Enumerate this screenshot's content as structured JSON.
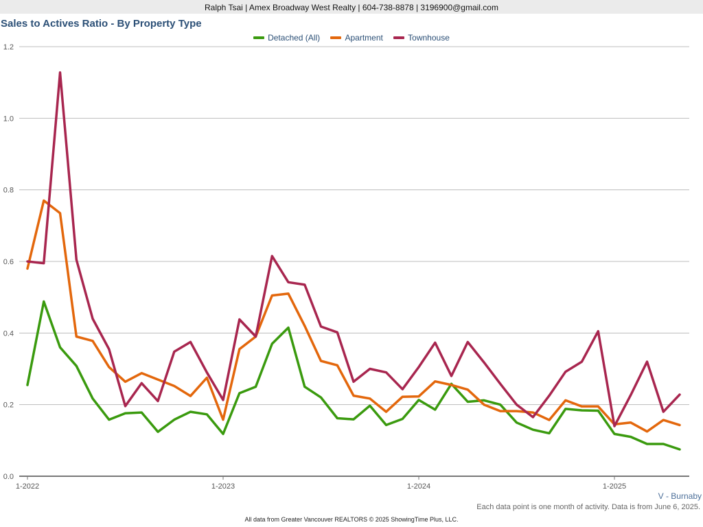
{
  "header": {
    "contact": "Ralph Tsai | Amex Broadway West Realty | 604-738-8878 | 3196900@gmail.com"
  },
  "region_label": "V - Burnaby",
  "note": "Each data point is one month of activity. Data is from June 6, 2025.",
  "footer": "All data from Greater Vancouver REALTORS © 2025 ShowingTime Plus, LLC.",
  "chart_data": {
    "type": "line",
    "title": "Sales to Actives Ratio - By Property Type",
    "xlabel": "",
    "ylabel": "",
    "ylim": [
      0,
      1.2
    ],
    "yticks": [
      "0.0",
      "0.2",
      "0.4",
      "0.6",
      "0.8",
      "1.0",
      "1.2"
    ],
    "xticks": [
      {
        "label": "1-2022",
        "index": 0
      },
      {
        "label": "1-2023",
        "index": 12
      },
      {
        "label": "1-2024",
        "index": 24
      },
      {
        "label": "1-2025",
        "index": 36
      }
    ],
    "grid": true,
    "legend": "top-center",
    "x": [
      "1-2022",
      "2-2022",
      "3-2022",
      "4-2022",
      "5-2022",
      "6-2022",
      "7-2022",
      "8-2022",
      "9-2022",
      "10-2022",
      "11-2022",
      "12-2022",
      "1-2023",
      "2-2023",
      "3-2023",
      "4-2023",
      "5-2023",
      "6-2023",
      "7-2023",
      "8-2023",
      "9-2023",
      "10-2023",
      "11-2023",
      "12-2023",
      "1-2024",
      "2-2024",
      "3-2024",
      "4-2024",
      "5-2024",
      "6-2024",
      "7-2024",
      "8-2024",
      "9-2024",
      "10-2024",
      "11-2024",
      "12-2024",
      "1-2025",
      "2-2025",
      "3-2025",
      "4-2025",
      "5-2025"
    ],
    "series": [
      {
        "name": "Detached (All)",
        "color": "#3a9a0e",
        "values": [
          0.255,
          0.488,
          0.36,
          0.308,
          0.217,
          0.158,
          0.176,
          0.178,
          0.124,
          0.158,
          0.18,
          0.173,
          0.118,
          0.232,
          0.25,
          0.37,
          0.415,
          0.25,
          0.22,
          0.162,
          0.159,
          0.197,
          0.143,
          0.16,
          0.213,
          0.186,
          0.258,
          0.208,
          0.212,
          0.2,
          0.15,
          0.13,
          0.12,
          0.188,
          0.184,
          0.183,
          0.118,
          0.11,
          0.09,
          0.09,
          0.075
        ]
      },
      {
        "name": "Apartment",
        "color": "#e3670c",
        "values": [
          0.58,
          0.77,
          0.735,
          0.39,
          0.378,
          0.305,
          0.264,
          0.288,
          0.27,
          0.252,
          0.224,
          0.275,
          0.158,
          0.355,
          0.39,
          0.505,
          0.51,
          0.42,
          0.322,
          0.31,
          0.225,
          0.217,
          0.18,
          0.222,
          0.223,
          0.265,
          0.255,
          0.242,
          0.2,
          0.182,
          0.182,
          0.178,
          0.157,
          0.212,
          0.195,
          0.195,
          0.145,
          0.15,
          0.125,
          0.157,
          0.143
        ]
      },
      {
        "name": "Townhouse",
        "color": "#a8264f",
        "values": [
          0.6,
          0.595,
          1.128,
          0.605,
          0.44,
          0.355,
          0.196,
          0.26,
          0.21,
          0.348,
          0.375,
          0.29,
          0.213,
          0.438,
          0.39,
          0.615,
          0.542,
          0.535,
          0.418,
          0.402,
          0.264,
          0.3,
          0.29,
          0.243,
          0.305,
          0.373,
          0.28,
          0.375,
          0.318,
          0.258,
          0.2,
          0.165,
          0.225,
          0.292,
          0.32,
          0.405,
          0.14,
          0.227,
          0.32,
          0.18,
          0.228
        ]
      }
    ]
  }
}
